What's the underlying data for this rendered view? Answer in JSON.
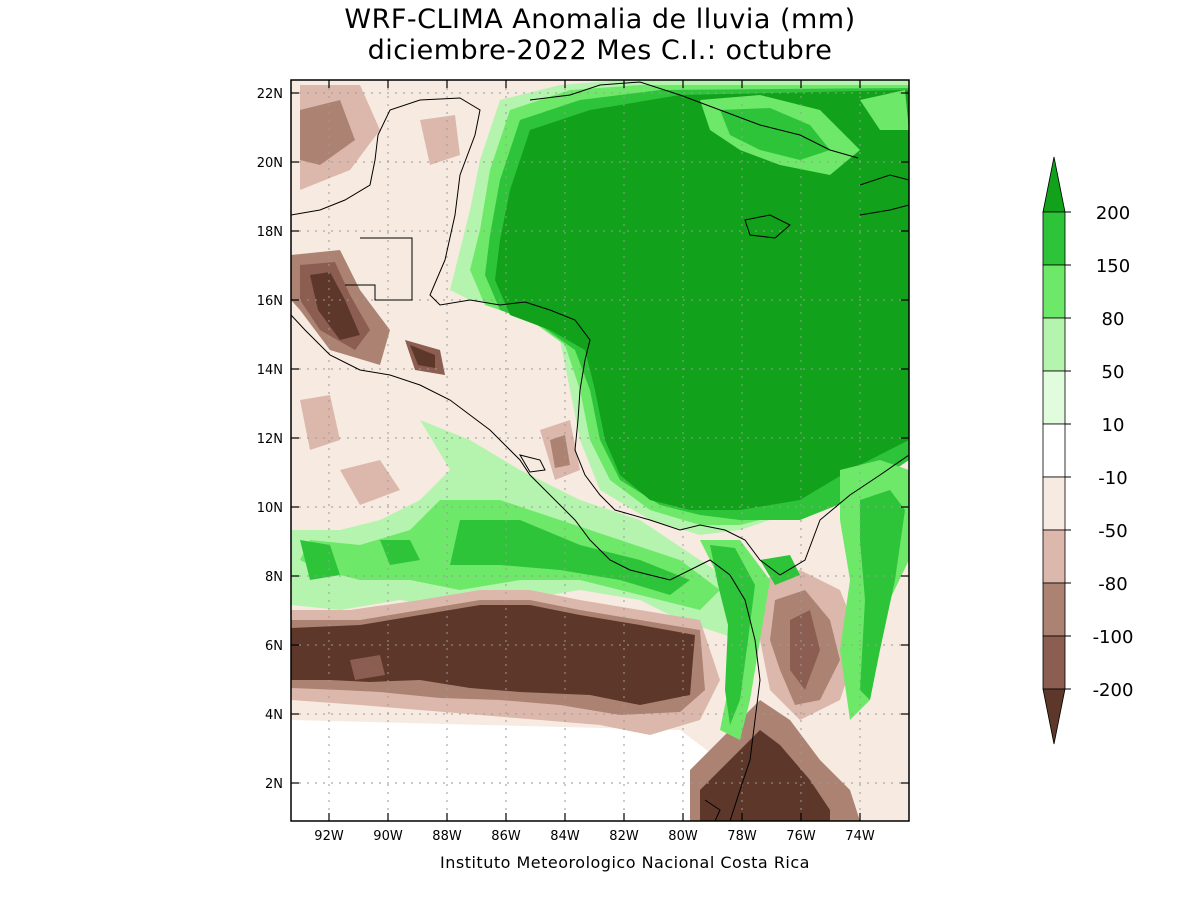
{
  "title": {
    "line1": "WRF-CLIMA Anomalia de lluvia (mm)",
    "line2": "diciembre-2022 Mes C.I.: octubre"
  },
  "credit": "Instituto Meteorologico Nacional Costa Rica",
  "map": {
    "lon_range": [
      -93.3,
      -72.4
    ],
    "lat_range": [
      0.9,
      22.4
    ],
    "x_ticks": [
      "92W",
      "90W",
      "88W",
      "86W",
      "84W",
      "82W",
      "80W",
      "78W",
      "76W",
      "74W"
    ],
    "y_ticks": [
      "2N",
      "4N",
      "6N",
      "8N",
      "10N",
      "12N",
      "14N",
      "16N",
      "18N",
      "20N",
      "22N"
    ]
  },
  "legend": {
    "labels": [
      "200",
      "150",
      "80",
      "50",
      "10",
      "-10",
      "-50",
      "-80",
      "-100",
      "-200"
    ],
    "colors": [
      "#11a11a",
      "#2ec43a",
      "#6ee869",
      "#b5f4ae",
      "#e1fbdd",
      "#ffffff",
      "#f7ebe1",
      "#dcb8ac",
      "#ac8373",
      "#8c5e51",
      "#5e372b"
    ]
  }
}
